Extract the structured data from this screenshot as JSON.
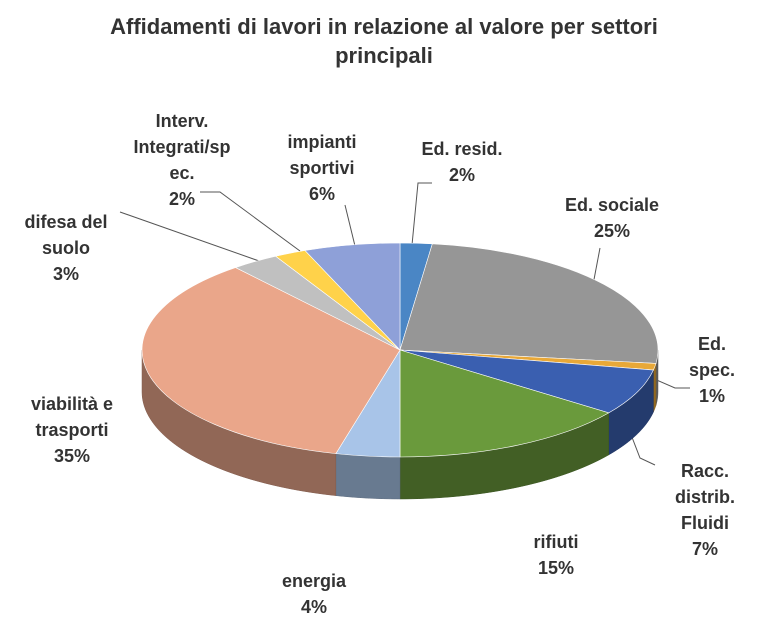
{
  "chart_data": {
    "type": "pie3d",
    "title": "Affidamenti di lavori in relazione al valore per settori principali",
    "categories": [
      "Ed. resid.",
      "Ed. sociale",
      "Ed. spec.",
      "Racc.\ndistrib.\nFluidi",
      "rifiuti",
      "energia",
      "viabilità e\ntrasporti",
      "difesa del\nsuolo",
      "Interv.\nIntegrati/sp\nec.",
      "impianti\nsportivi"
    ],
    "values": [
      2,
      25,
      1,
      7,
      15,
      4,
      35,
      3,
      2,
      6
    ],
    "value_labels": [
      "2%",
      "25%",
      "1%",
      "7%",
      "15%",
      "4%",
      "35%",
      "3%",
      "2%",
      "6%"
    ],
    "colors": [
      "#4a86c5",
      "#969696",
      "#e8a838",
      "#3a5fb0",
      "#6a9a3c",
      "#a8c4e8",
      "#eaa68a",
      "#c0c0c0",
      "#ffd24a",
      "#8ea0d8"
    ]
  }
}
